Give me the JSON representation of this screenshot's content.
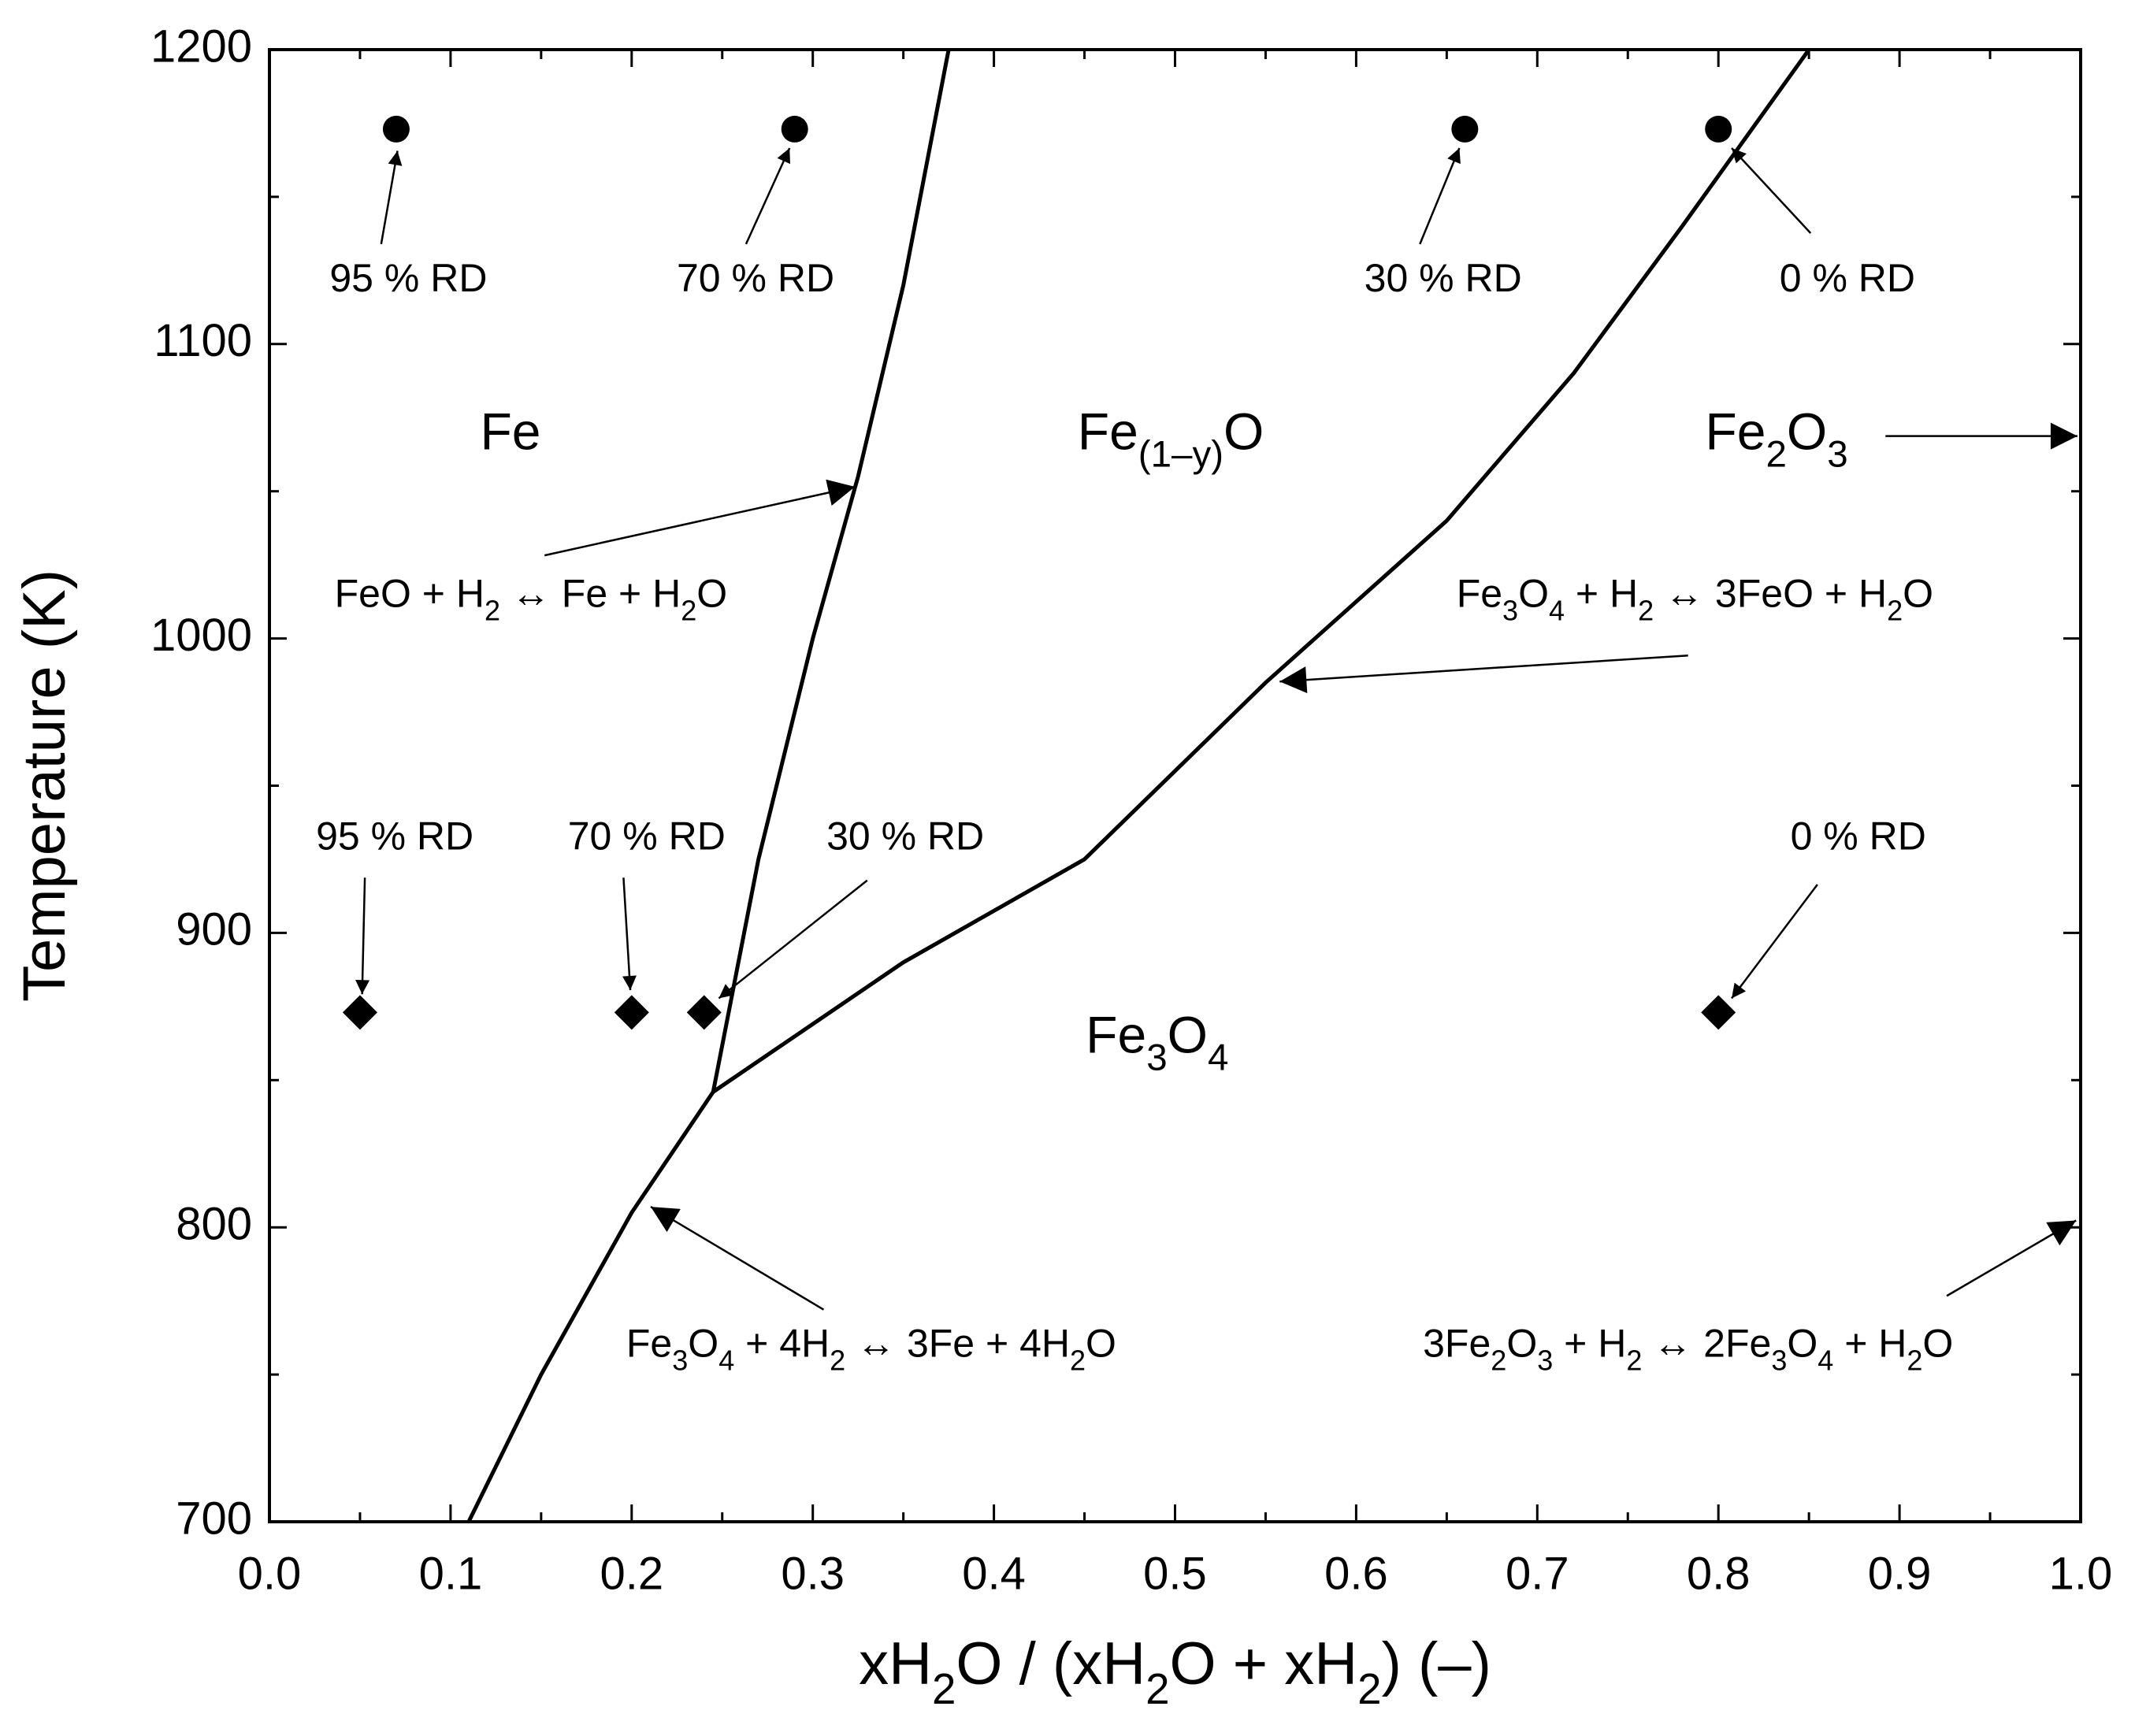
{
  "chart_data": {
    "type": "line",
    "xlabel": [
      "xH",
      "2",
      "O / (xH",
      "2",
      "O + xH",
      "2",
      ") (–)"
    ],
    "ylabel": "Temperature (K)",
    "xlim": [
      0,
      1
    ],
    "ylim": [
      700,
      1200
    ],
    "xticks": [
      {
        "value": 0,
        "label": "0.0"
      },
      0.1,
      0.2,
      0.3,
      0.4,
      0.5,
      0.6,
      0.7,
      0.8,
      0.9,
      {
        "value": 1,
        "label": "1.0"
      }
    ],
    "xminorticks": [
      0.05,
      0.15,
      0.25,
      0.35,
      0.45,
      0.55,
      0.65,
      0.75,
      0.85,
      0.95
    ],
    "yticks": [
      700,
      800,
      900,
      1000,
      1100,
      1200
    ],
    "yminorticks": [
      750,
      850,
      950,
      1050,
      1150
    ],
    "series": [
      {
        "type": "line",
        "color": "#000000",
        "x": [
          0.245,
          0.27,
          0.3,
          0.325,
          0.35,
          0.375
        ],
        "values": [
          846,
          925,
          1000,
          1055,
          1120,
          1200
        ]
      },
      {
        "type": "line",
        "color": "#000000",
        "x": [
          0.11,
          0.15,
          0.2,
          0.245
        ],
        "values": [
          700,
          750,
          805,
          846
        ]
      },
      {
        "type": "line",
        "color": "#000000",
        "x": [
          0.245,
          0.35,
          0.45,
          0.55,
          0.65,
          0.72,
          0.78,
          0.85
        ],
        "values": [
          846,
          890,
          925,
          985,
          1040,
          1090,
          1140,
          1200
        ]
      },
      {
        "type": "scatter",
        "marker": "circle",
        "color": "#000000",
        "x": [
          0.07,
          0.29,
          0.66,
          0.8
        ],
        "values": [
          1173,
          1173,
          1173,
          1173
        ],
        "labels": [
          "95 % RD",
          "70 % RD",
          "30 % RD",
          "0 % RD"
        ]
      },
      {
        "type": "scatter",
        "marker": "diamond",
        "color": "#000000",
        "x": [
          0.05,
          0.2,
          0.24,
          0.8
        ],
        "values": [
          873,
          873,
          873,
          873
        ],
        "labels": [
          "95 % RD",
          "70 % RD",
          "30 % RD",
          "0 % RD"
        ]
      }
    ],
    "annotations": [
      [
        "Fe"
      ],
      [
        "Fe",
        "(1–y)",
        "O"
      ],
      [
        "Fe",
        "2",
        "O",
        "3"
      ],
      [
        "Fe",
        "3",
        "O",
        "4"
      ],
      [
        "FeO + H",
        "2",
        " ↔ Fe + H",
        "2",
        "O"
      ],
      [
        "Fe",
        "3",
        "O",
        "4",
        " + H",
        "2",
        " ↔ 3FeO + H",
        "2",
        "O"
      ],
      [
        "Fe",
        "3",
        "O",
        "4",
        " + 4H",
        "2",
        " ↔ 3Fe + 4H",
        "2",
        "O"
      ],
      [
        "3Fe",
        "2",
        "O",
        "3",
        " + H",
        "2",
        " ↔ 2Fe",
        "3",
        "O",
        "4",
        " + H",
        "2",
        "O"
      ]
    ]
  }
}
